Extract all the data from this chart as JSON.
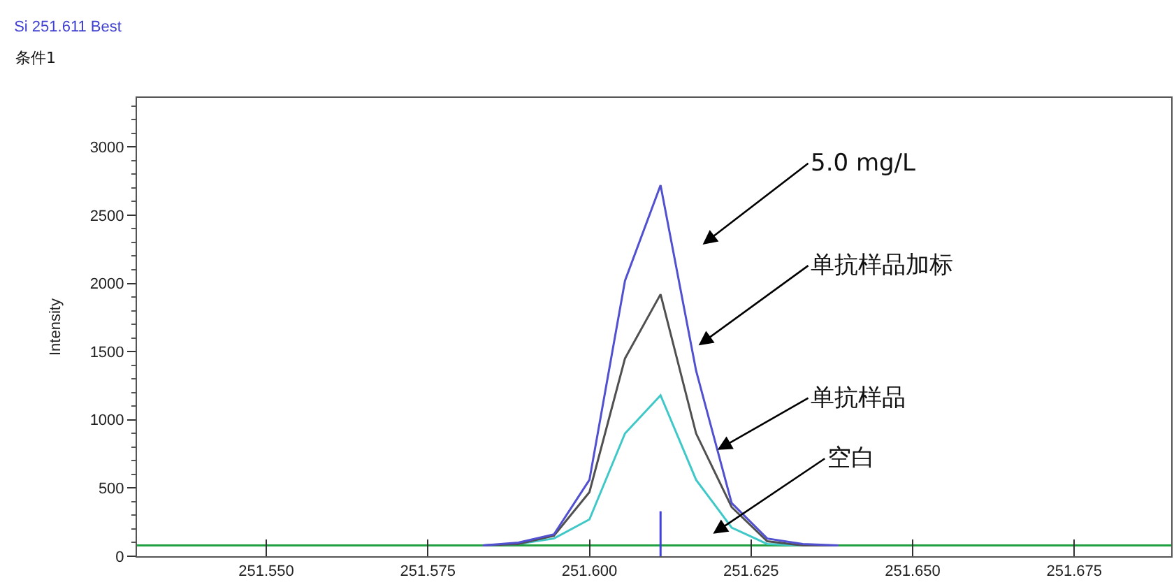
{
  "chart_data": {
    "type": "line",
    "title": "Si 251.611 Best",
    "subtitle": "条件1",
    "ylabel": "Intensity",
    "xlim": [
      251.53,
      251.69
    ],
    "xticks": [
      {
        "value": 251.55,
        "label": "251.550"
      },
      {
        "value": 251.575,
        "label": "251.575"
      },
      {
        "value": 251.6,
        "label": "251.600"
      },
      {
        "value": 251.625,
        "label": "251.625"
      },
      {
        "value": 251.65,
        "label": "251.650"
      },
      {
        "value": 251.675,
        "label": "251.675"
      }
    ],
    "ylim": [
      0,
      3360
    ],
    "yticks": [
      0,
      500,
      1000,
      1500,
      2000,
      2500,
      3000
    ],
    "marker": "none",
    "line_style": "solid",
    "series": [
      {
        "color": "#20a040",
        "x": [
          251.53,
          251.69
        ],
        "values": [
          80,
          80
        ]
      },
      {
        "color": "#40c8c8",
        "x": [
          251.5835,
          251.589,
          251.5945,
          251.6,
          251.6055,
          251.611,
          251.6165,
          251.622,
          251.6275,
          251.633,
          251.6385
        ],
        "values": [
          80,
          90,
          130,
          270,
          900,
          1180,
          560,
          210,
          90,
          80,
          80
        ]
      },
      {
        "color": "#505050",
        "x": [
          251.5835,
          251.589,
          251.5945,
          251.6,
          251.6055,
          251.611,
          251.6165,
          251.622,
          251.6275,
          251.633,
          251.6385
        ],
        "values": [
          80,
          90,
          150,
          470,
          1450,
          1920,
          900,
          360,
          110,
          80,
          80
        ]
      },
      {
        "color": "#5050d0",
        "x": [
          251.5835,
          251.589,
          251.5945,
          251.6,
          251.6055,
          251.611,
          251.6165,
          251.622,
          251.6275,
          251.633,
          251.6385
        ],
        "values": [
          80,
          100,
          160,
          560,
          2020,
          2720,
          1360,
          390,
          130,
          90,
          80
        ]
      },
      {
        "color": "#4040e0",
        "x": [
          251.611,
          251.611
        ],
        "values": [
          0,
          330
        ]
      }
    ],
    "annotations": [
      "5.0 mg/L",
      "单抗样品加标",
      {
        "text": "单抗样品",
        "x": 251.6198,
        "y": 780
      },
      "空白"
    ]
  }
}
